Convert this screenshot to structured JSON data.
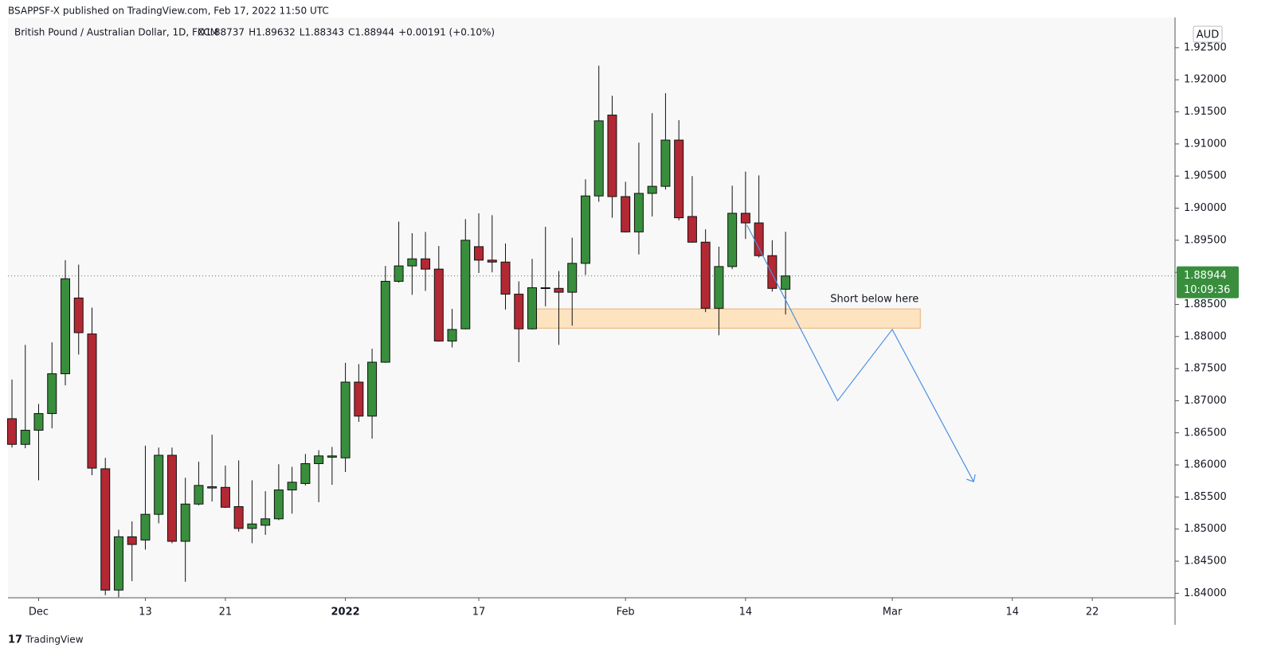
{
  "chart_data": {
    "type": "candlestick",
    "header": "BSAPPSF-X published on TradingView.com, Feb 17, 2022 11:50 UTC",
    "symbol": "British Pound / Australian Dollar, 1D, FXCM",
    "legend_values": [
      "O1.88737",
      "H1.89632",
      "L1.88343",
      "C1.88944",
      "+0.00191 (+0.10%)"
    ],
    "currency": "AUD",
    "last_price_label": "1.88944",
    "countdown": "10:09:36",
    "last_price": 1.88944,
    "annotation": "Short below here",
    "brand": "TradingView",
    "up_color": "#388e3c",
    "down_color": "#b22833",
    "projection_color": "#4a90e2",
    "zone_color": "#fde3c0",
    "grid": false,
    "zone": {
      "x": [
        39,
        68.1
      ],
      "y": [
        1.8813,
        1.8843
      ]
    },
    "projection": {
      "x": [
        55.1,
        61.9,
        66.0,
        72.1
      ],
      "y": [
        1.8974,
        1.87,
        1.8811,
        1.8574
      ]
    },
    "xlim": [
      -0.3,
      87.2
    ],
    "xticks": [
      {
        "value": 2,
        "label": "Dec"
      },
      {
        "value": 10,
        "label": "13"
      },
      {
        "value": 16,
        "label": "21"
      },
      {
        "value": 25,
        "label": "2022"
      },
      {
        "value": 35,
        "label": "17"
      },
      {
        "value": 46,
        "label": "Feb"
      },
      {
        "value": 55,
        "label": "14"
      },
      {
        "value": 66,
        "label": "Mar"
      },
      {
        "value": 75,
        "label": "14"
      },
      {
        "value": 81,
        "label": "22"
      }
    ],
    "ylim": [
      1.8393,
      1.9297
    ],
    "yticks": [
      {
        "value": 1.84,
        "label": "1.84000"
      },
      {
        "value": 1.845,
        "label": "1.84500"
      },
      {
        "value": 1.85,
        "label": "1.85000"
      },
      {
        "value": 1.855,
        "label": "1.85500"
      },
      {
        "value": 1.86,
        "label": "1.86000"
      },
      {
        "value": 1.865,
        "label": "1.86500"
      },
      {
        "value": 1.87,
        "label": "1.87000"
      },
      {
        "value": 1.875,
        "label": "1.87500"
      },
      {
        "value": 1.88,
        "label": "1.88000"
      },
      {
        "value": 1.885,
        "label": "1.88500"
      },
      {
        "value": 1.89,
        "label": "1.89000"
      },
      {
        "value": 1.895,
        "label": "1.89500"
      },
      {
        "value": 1.9,
        "label": "1.90000"
      },
      {
        "value": 1.905,
        "label": "1.90500"
      },
      {
        "value": 1.91,
        "label": "1.91000"
      },
      {
        "value": 1.915,
        "label": "1.91500"
      },
      {
        "value": 1.92,
        "label": "1.92000"
      },
      {
        "value": 1.925,
        "label": "1.92500"
      }
    ],
    "open": [
      1.8672,
      1.8632,
      1.8654,
      1.868,
      1.8742,
      1.886,
      1.8804,
      1.8594,
      1.8405,
      1.8488,
      1.8483,
      1.8523,
      1.8615,
      1.8481,
      1.8539,
      1.8564,
      1.8565,
      1.8535,
      1.8501,
      1.8506,
      1.8516,
      1.8561,
      1.8571,
      1.8602,
      1.8612,
      1.8611,
      1.8729,
      1.8676,
      1.876,
      1.8886,
      1.891,
      1.8921,
      1.8905,
      1.8793,
      1.8812,
      1.894,
      1.8919,
      1.8916,
      1.8866,
      1.8812,
      1.8875,
      1.8875,
      1.8869,
      1.8914,
      1.9019,
      1.9145,
      1.9018,
      1.8963,
      1.9023,
      1.9034,
      1.9106,
      1.8987,
      1.8947,
      1.8844,
      1.8909,
      1.8992,
      1.8977,
      1.8926,
      1.88737
    ],
    "high": [
      1.8733,
      1.8787,
      1.8695,
      1.8791,
      1.8919,
      1.8912,
      1.8845,
      1.8611,
      1.8499,
      1.8512,
      1.863,
      1.8627,
      1.8627,
      1.858,
      1.8605,
      1.8647,
      1.8599,
      1.8607,
      1.8576,
      1.8559,
      1.8601,
      1.8597,
      1.8617,
      1.8623,
      1.8628,
      1.8759,
      1.8757,
      1.8781,
      1.891,
      1.8979,
      1.8961,
      1.8963,
      1.8941,
      1.8843,
      1.8983,
      1.8992,
      1.8989,
      1.8945,
      1.8886,
      1.8921,
      1.8971,
      1.8902,
      1.8954,
      1.9045,
      1.9222,
      1.9175,
      1.9041,
      1.9102,
      1.9148,
      1.9179,
      1.9137,
      1.905,
      1.8967,
      1.894,
      1.9035,
      1.9057,
      1.9051,
      1.895,
      1.89632
    ],
    "low": [
      1.8627,
      1.8626,
      1.8576,
      1.8657,
      1.8724,
      1.8772,
      1.8584,
      1.8397,
      1.8394,
      1.8419,
      1.8468,
      1.8509,
      1.8478,
      1.8418,
      1.8537,
      1.8543,
      1.8533,
      1.8496,
      1.8478,
      1.8491,
      1.8514,
      1.8524,
      1.8568,
      1.8542,
      1.8569,
      1.8589,
      1.8667,
      1.8641,
      1.8759,
      1.8884,
      1.8865,
      1.8871,
      1.8792,
      1.8783,
      1.8811,
      1.8899,
      1.89,
      1.8842,
      1.876,
      1.8811,
      1.8847,
      1.8787,
      1.8817,
      1.8896,
      1.901,
      1.8985,
      1.8962,
      1.8928,
      1.8987,
      1.9029,
      1.8981,
      1.8946,
      1.8838,
      1.8802,
      1.8905,
      1.8952,
      1.8923,
      1.887,
      1.88343
    ],
    "close": [
      1.8632,
      1.8654,
      1.868,
      1.8742,
      1.889,
      1.8806,
      1.8595,
      1.8405,
      1.8488,
      1.8476,
      1.8523,
      1.8615,
      1.8481,
      1.8539,
      1.8568,
      1.8566,
      1.8534,
      1.8501,
      1.8508,
      1.8516,
      1.8561,
      1.8573,
      1.8602,
      1.8614,
      1.8614,
      1.8729,
      1.8676,
      1.876,
      1.8886,
      1.891,
      1.8921,
      1.8905,
      1.8793,
      1.8811,
      1.895,
      1.8919,
      1.8916,
      1.8866,
      1.8812,
      1.8876,
      1.8876,
      1.8869,
      1.8914,
      1.9019,
      1.9136,
      1.9018,
      1.8963,
      1.9023,
      1.9034,
      1.9106,
      1.8985,
      1.8947,
      1.8844,
      1.8909,
      1.8992,
      1.8977,
      1.8926,
      1.8875,
      1.88944
    ]
  }
}
